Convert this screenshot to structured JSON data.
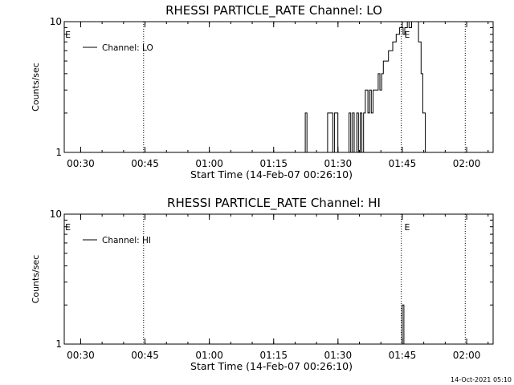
{
  "chart_data": [
    {
      "type": "line",
      "title": "RHESSI PARTICLE_RATE Channel: LO",
      "xlabel": "Start Time (14-Feb-07 00:26:10)",
      "ylabel": "Counts/sec",
      "yscale": "log",
      "ylim": [
        1,
        10
      ],
      "ytick_labels": [
        "1",
        "10"
      ],
      "xlim_minutes": [
        0,
        100
      ],
      "xtick_labels": [
        "00:30",
        "00:45",
        "01:00",
        "01:15",
        "01:30",
        "01:45",
        "02:00"
      ],
      "xtick_minutes": [
        3.83,
        18.83,
        33.83,
        48.83,
        63.83,
        78.83,
        93.83
      ],
      "event_lines_minutes": [
        18.5,
        78.6,
        93.5
      ],
      "event_markers": [
        {
          "label": "E",
          "x_minutes": 0.2
        },
        {
          "label": "E",
          "x_minutes": 79.3
        }
      ],
      "legend": {
        "entries": [
          "Channel: LO"
        ],
        "location": "top-left"
      },
      "series": [
        {
          "name": "Channel: LO",
          "x": [
            0,
            55.8,
            56.2,
            56.6,
            57.0,
            61.0,
            61.4,
            62.0,
            62.6,
            63.0,
            63.4,
            63.8,
            64.2,
            66.0,
            66.4,
            66.8,
            67.2,
            67.6,
            68.2,
            68.6,
            69.0,
            69.4,
            69.8,
            70.2,
            70.8,
            71.2,
            71.6,
            72.0,
            72.4,
            72.8,
            73.2,
            73.6,
            74.0,
            74.4,
            74.8,
            75.2,
            75.6,
            76.0,
            76.6,
            77.0,
            77.4,
            77.8,
            78.2,
            78.6,
            79.0,
            79.4,
            80.0,
            80.4,
            81.0,
            81.6,
            82.0,
            82.6,
            83.2,
            83.6,
            84.2,
            100
          ],
          "y": [
            1,
            1,
            2,
            1,
            1,
            1,
            2,
            2,
            1,
            2,
            2,
            1,
            1,
            1,
            2,
            1,
            2,
            1,
            2,
            1,
            2,
            1,
            2,
            3,
            2,
            3,
            2,
            3,
            3,
            3,
            4,
            3,
            4,
            5,
            5,
            5,
            6,
            6,
            7,
            7,
            8,
            8,
            9,
            9,
            8,
            9,
            10,
            9,
            10,
            10,
            10,
            7,
            4,
            2,
            1,
            1
          ]
        }
      ]
    },
    {
      "type": "line",
      "title": "RHESSI PARTICLE_RATE Channel: HI",
      "xlabel": "Start Time (14-Feb-07 00:26:10)",
      "ylabel": "Counts/sec",
      "yscale": "log",
      "ylim": [
        1,
        10
      ],
      "ytick_labels": [
        "1",
        "10"
      ],
      "xlim_minutes": [
        0,
        100
      ],
      "xtick_labels": [
        "00:30",
        "00:45",
        "01:00",
        "01:15",
        "01:30",
        "01:45",
        "02:00"
      ],
      "xtick_minutes": [
        3.83,
        18.83,
        33.83,
        48.83,
        63.83,
        78.83,
        93.83
      ],
      "event_lines_minutes": [
        18.5,
        78.6,
        93.5
      ],
      "event_markers": [
        {
          "label": "E",
          "x_minutes": 0.2
        },
        {
          "label": "E",
          "x_minutes": 79.3
        }
      ],
      "legend": {
        "entries": [
          "Channel: HI"
        ],
        "location": "top-left"
      },
      "series": [
        {
          "name": "Channel: HI",
          "x": [
            0,
            78.5,
            78.8,
            79.0,
            79.2,
            79.4,
            100
          ],
          "y": [
            1,
            1,
            2,
            2,
            1,
            1,
            1
          ]
        }
      ]
    }
  ],
  "timestamp": "14-Oct-2021 05:10"
}
